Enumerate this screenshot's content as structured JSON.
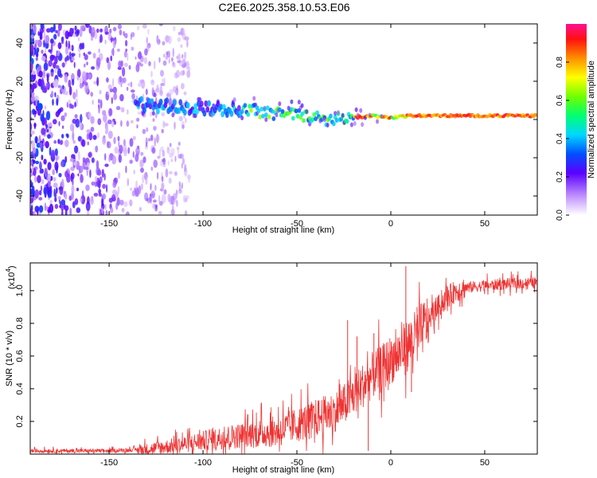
{
  "title": "C2E6.2025.358.10.53.E06",
  "chart_data": [
    {
      "type": "heatmap",
      "name": "spectrogram",
      "xlabel": "Height of straight line (km)",
      "ylabel": "Frequency (Hz)",
      "xlim": [
        -192,
        78
      ],
      "ylim": [
        -50,
        50
      ],
      "x_ticks": [
        -150,
        -100,
        -50,
        0,
        50
      ],
      "x_tick_labels": [
        "-150",
        "-100",
        "-50",
        "0",
        "50"
      ],
      "y_ticks": [
        40,
        20,
        0,
        -20,
        -40
      ],
      "y_tick_labels": [
        "40",
        "20",
        "0",
        "-20",
        "-40"
      ],
      "ridge": {
        "x": [
          -135,
          -120,
          -100,
          -80,
          -75,
          -60,
          -45,
          -35,
          -25,
          -20,
          -10,
          0,
          10,
          30,
          50,
          78
        ],
        "freq": [
          8,
          7,
          6,
          5,
          5,
          3,
          2,
          0,
          0,
          1,
          2,
          1,
          2,
          2,
          2,
          2
        ]
      },
      "colorbar": {
        "label": "Normalized spectral amplitude",
        "range": [
          0,
          1
        ],
        "ticks": [
          0.0,
          0.2,
          0.4,
          0.6,
          0.8
        ],
        "tick_labels": [
          "0.0",
          "0.2",
          "0.4",
          "0.6",
          "0.8"
        ]
      }
    },
    {
      "type": "line",
      "name": "snr",
      "xlabel": "Height of straight line (km)",
      "ylabel": "SNR (10 * v/v)",
      "multiplier_label": "(x10",
      "multiplier_exp": "4",
      "multiplier_close": ")",
      "xlim": [
        -192,
        78
      ],
      "ylim": [
        0,
        1.17
      ],
      "x_ticks": [
        -150,
        -100,
        -50,
        0,
        50
      ],
      "x_tick_labels": [
        "-150",
        "-100",
        "-50",
        "0",
        "50"
      ],
      "y_ticks": [
        0.2,
        0.4,
        0.6,
        0.8,
        1.0
      ],
      "y_tick_labels": [
        "0.2",
        "0.4",
        "0.6",
        "0.8",
        "1.0"
      ],
      "color": "#ee3333",
      "envelope": {
        "x": [
          -192,
          -150,
          -130,
          -110,
          -90,
          -75,
          -60,
          -50,
          -40,
          -30,
          -25,
          -20,
          -15,
          -10,
          -5,
          0,
          5,
          10,
          15,
          20,
          25,
          30,
          35,
          40,
          50,
          60,
          78
        ],
        "y": [
          0.02,
          0.02,
          0.03,
          0.06,
          0.1,
          0.12,
          0.14,
          0.18,
          0.22,
          0.26,
          0.3,
          0.36,
          0.42,
          0.48,
          0.52,
          0.58,
          0.62,
          0.68,
          0.74,
          0.82,
          0.9,
          0.96,
          1.0,
          1.02,
          1.03,
          1.04,
          1.05
        ]
      },
      "spikes": [
        {
          "x": -23,
          "y": 0.82
        },
        {
          "x": -18,
          "y": 0.72
        },
        {
          "x": -12,
          "y": 0.02
        },
        {
          "x": -9,
          "y": 0.74
        },
        {
          "x": 8,
          "y": 1.15
        },
        {
          "x": 11,
          "y": 0.38
        },
        {
          "x": 14,
          "y": 0.9
        }
      ]
    }
  ]
}
